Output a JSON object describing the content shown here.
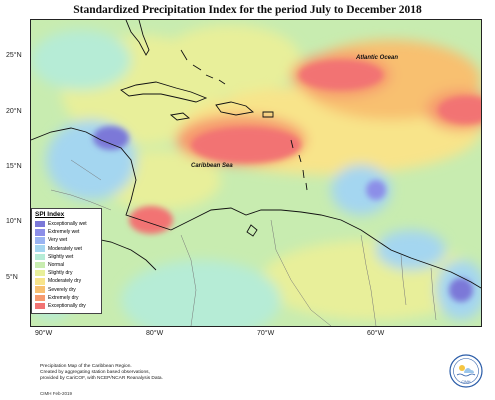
{
  "title": "Standardized Precipitation Index for the period July to December 2018",
  "labels": {
    "atlantic": "Atlantic Ocean",
    "caribbean": "Caribbean Sea"
  },
  "y_axis": [
    "25°N",
    "20°N",
    "15°N",
    "10°N",
    "5°N"
  ],
  "x_axis": [
    "90°W",
    "80°W",
    "70°W",
    "60°W"
  ],
  "legend": {
    "title": "SPI Index",
    "items": [
      {
        "label": "Exceptionally wet",
        "color": "#7b78d8"
      },
      {
        "label": "Extremely wet",
        "color": "#8c8ee8"
      },
      {
        "label": "Very wet",
        "color": "#9ab4f2"
      },
      {
        "label": "Moderately wet",
        "color": "#a4d6f0"
      },
      {
        "label": "Slightly wet",
        "color": "#b6ecd6"
      },
      {
        "label": "Normal",
        "color": "#c8ecb0"
      },
      {
        "label": "Slightly dry",
        "color": "#e8ef9a"
      },
      {
        "label": "Moderately dry",
        "color": "#f8e48a"
      },
      {
        "label": "Severely dry",
        "color": "#f8c070"
      },
      {
        "label": "Extremely dry",
        "color": "#f69a6e"
      },
      {
        "label": "Exceptionally dry",
        "color": "#f27373"
      }
    ]
  },
  "footnote": {
    "line1": "Precipitation Map of the Caribbean Region.",
    "line2": "Created by aggregating station based observations,",
    "line3": "provided by CariCOF, with NCEP/NCAR Reanalysis Data."
  },
  "credit": "CIMH Feb-2019",
  "logo_text": "CIMH"
}
